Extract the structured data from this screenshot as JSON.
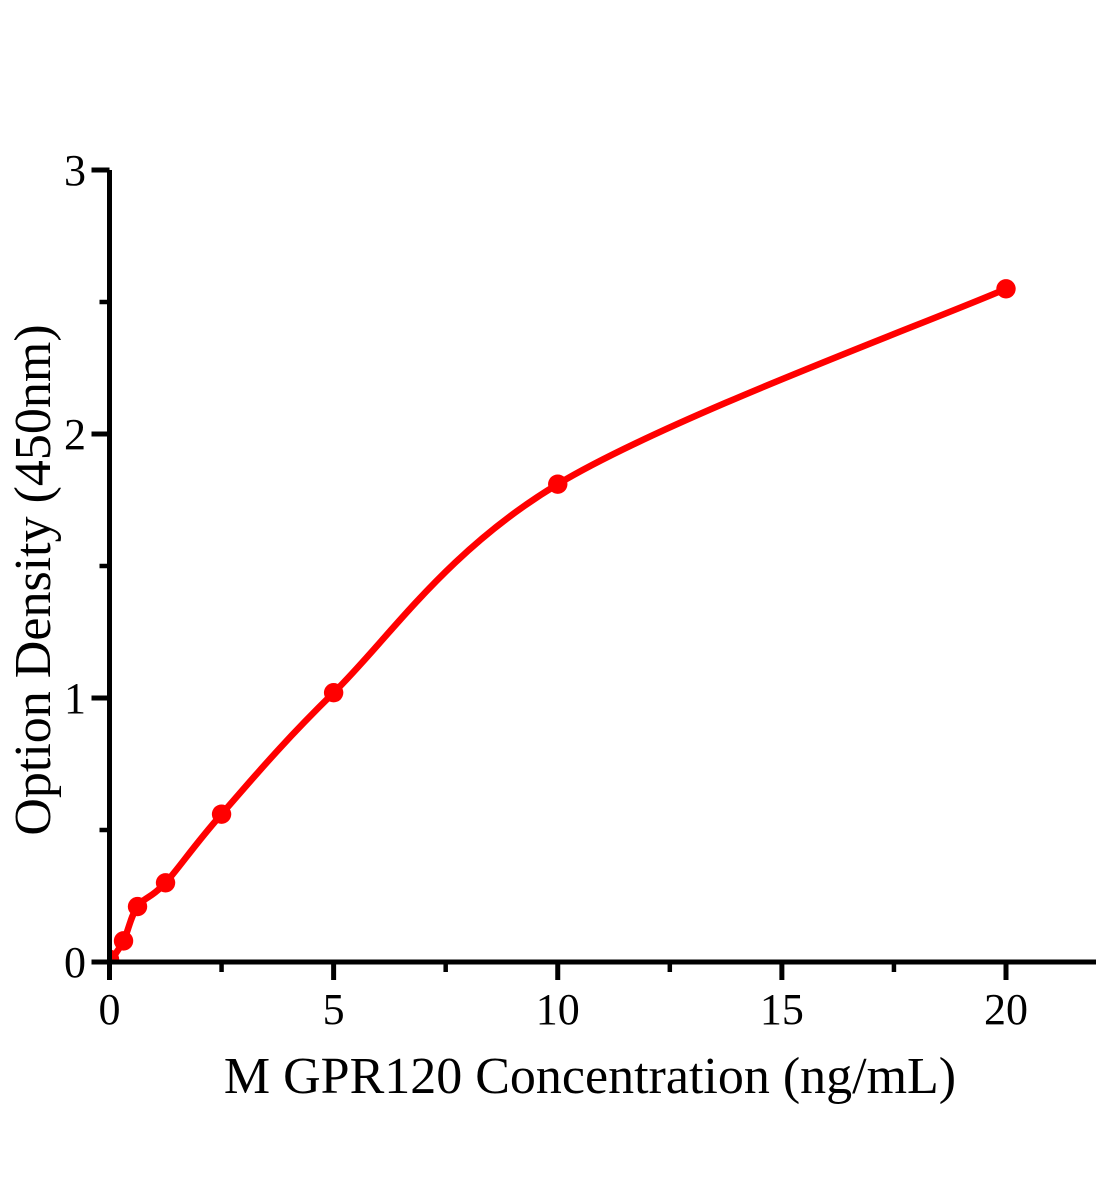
{
  "figure": {
    "background_color": "#ffffff",
    "kind": "ELISA standard curve plot"
  },
  "chart_data": {
    "type": "scatter",
    "title": "",
    "xlabel": "M GPR120 Concentration（ng/mL）",
    "ylabel": "Option Density（450nm）",
    "x": [
      0.313,
      0.625,
      1.25,
      2.5,
      5,
      10,
      20
    ],
    "y": [
      0.08,
      0.21,
      0.3,
      0.56,
      1.02,
      1.81,
      2.55
    ],
    "curve": {
      "style": "smooth-fit-through-points",
      "starts_at": [
        0,
        0
      ],
      "origin_marker": true
    },
    "xlim": [
      0,
      22
    ],
    "ylim": [
      0,
      3
    ],
    "x_major_ticks": [
      0,
      5,
      10,
      15,
      20
    ],
    "x_minor_ticks": [
      2.5,
      7.5,
      12.5,
      17.5
    ],
    "y_major_ticks": [
      0,
      1,
      2,
      3
    ],
    "y_minor_ticks": [
      0.5,
      1.5,
      2.5
    ],
    "grid": false,
    "legend": null,
    "colors": {
      "series": "#ff0000",
      "axis": "#000000",
      "text": "#000000"
    }
  }
}
